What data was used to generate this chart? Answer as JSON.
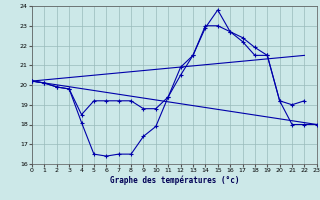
{
  "xlabel": "Graphe des températures (°c)",
  "bg_color": "#cce8e8",
  "grid_color": "#99bbbb",
  "line_color": "#0000aa",
  "xlim": [
    0,
    23
  ],
  "ylim": [
    16,
    24
  ],
  "yticks": [
    16,
    17,
    18,
    19,
    20,
    21,
    22,
    23,
    24
  ],
  "xticks": [
    0,
    1,
    2,
    3,
    4,
    5,
    6,
    7,
    8,
    9,
    10,
    11,
    12,
    13,
    14,
    15,
    16,
    17,
    18,
    19,
    20,
    21,
    22,
    23
  ],
  "line1_x": [
    0,
    1,
    2,
    3,
    4,
    5,
    6,
    7,
    8,
    9,
    10,
    11,
    12,
    13,
    14,
    15,
    16,
    17,
    18,
    19,
    20,
    21,
    22,
    23
  ],
  "line1_y": [
    20.2,
    20.1,
    19.9,
    19.8,
    18.1,
    16.5,
    16.4,
    16.5,
    16.5,
    17.4,
    17.9,
    19.4,
    20.9,
    21.5,
    22.9,
    23.8,
    22.7,
    22.4,
    21.9,
    21.5,
    19.2,
    18.0,
    18.0,
    18.0
  ],
  "line2_x": [
    0,
    22
  ],
  "line2_y": [
    20.2,
    21.5
  ],
  "line3_x": [
    0,
    23
  ],
  "line3_y": [
    20.2,
    18.0
  ],
  "line4_x": [
    0,
    1,
    2,
    3,
    4,
    5,
    6,
    7,
    8,
    9,
    10,
    11,
    12,
    13,
    14,
    15,
    16,
    17,
    18,
    19,
    20,
    21,
    22
  ],
  "line4_y": [
    20.2,
    20.1,
    19.9,
    19.8,
    18.5,
    19.2,
    19.2,
    19.2,
    19.2,
    18.8,
    18.8,
    19.4,
    20.5,
    21.5,
    23.0,
    23.0,
    22.7,
    22.2,
    21.5,
    21.5,
    19.2,
    19.0,
    19.2
  ]
}
